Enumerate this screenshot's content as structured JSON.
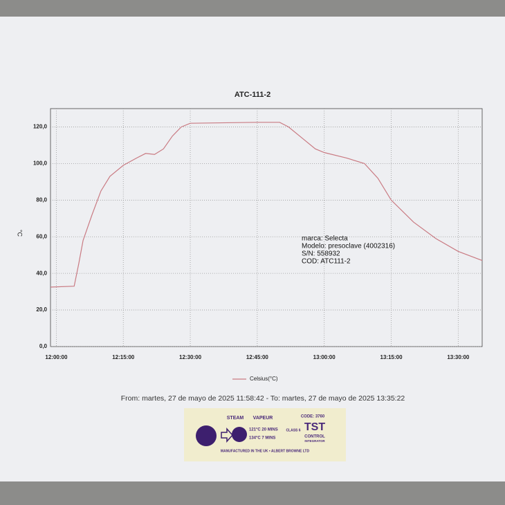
{
  "chart_data": {
    "type": "line",
    "title": "ATC-111-2",
    "y_label": "°C",
    "x": [
      "11:58:42",
      "12:04:00",
      "12:05:00",
      "12:06:00",
      "12:08:00",
      "12:10:00",
      "12:12:00",
      "12:15:00",
      "12:18:00",
      "12:20:00",
      "12:22:00",
      "12:24:00",
      "12:26:00",
      "12:28:00",
      "12:30:00",
      "12:45:00",
      "12:50:00",
      "12:52:00",
      "12:55:00",
      "12:58:00",
      "13:00:00",
      "13:05:00",
      "13:09:00",
      "13:12:00",
      "13:15:00",
      "13:20:00",
      "13:25:00",
      "13:30:00",
      "13:35:22"
    ],
    "series": [
      {
        "name": "Celsius(°C)",
        "color": "#c97a82",
        "values": [
          32.5,
          33,
          45,
          58,
          72,
          85,
          93,
          99,
          103,
          105.5,
          105,
          108,
          115,
          120,
          122,
          122.5,
          122.5,
          120,
          114,
          108,
          106,
          103,
          100,
          92,
          80,
          68,
          59,
          52,
          47
        ]
      }
    ],
    "xlim": [
      "11:58:42",
      "13:35:22"
    ],
    "xticks": [
      "12:00:00",
      "12:15:00",
      "12:30:00",
      "12:45:00",
      "13:00:00",
      "13:15:00",
      "13:30:00"
    ],
    "ylim": [
      0,
      130
    ],
    "yticks": [
      {
        "value": 0,
        "label": "0,0"
      },
      {
        "value": 20,
        "label": "20,0"
      },
      {
        "value": 40,
        "label": "40,0"
      },
      {
        "value": 60,
        "label": "60,0"
      },
      {
        "value": 80,
        "label": "80,0"
      },
      {
        "value": 100,
        "label": "100,0"
      },
      {
        "value": 120,
        "label": "120,0"
      }
    ],
    "grid": true,
    "annotations": [
      "marca: Selecta",
      "Modelo: presoclave (4002316)",
      "S/N: 558932",
      "COD: ATC111-2"
    ]
  },
  "footer": "From: martes, 27 de mayo de 2025 11:58:42  -  To: martes, 27 de mayo de 2025 13:35:22",
  "sticker": {
    "steam": "STEAM",
    "vapeur": "VAPEUR",
    "code": "CODE: 3760",
    "cycle1": "121°C 20 MINS",
    "cycle2": "134°C 7 MINS",
    "class": "CLASS 6",
    "brand": "TST",
    "control": "CONTROL",
    "integrator": "INTEGRATOR",
    "maker": "MANUFACTURED IN THE UK • ALBERT BROWNE LTD"
  }
}
